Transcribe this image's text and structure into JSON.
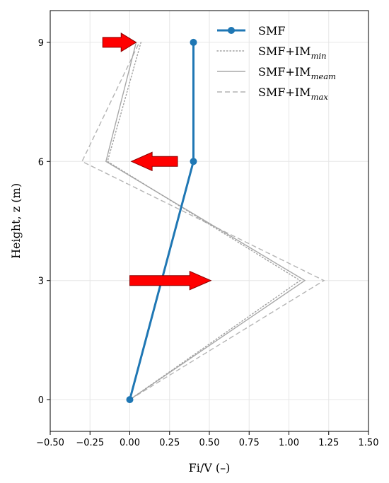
{
  "chart_data": {
    "type": "line",
    "title": "",
    "xlabel": "Fi/V (–)",
    "ylabel": "Height, z (m)",
    "xlim": [
      -0.5,
      1.5
    ],
    "ylim": [
      -0.8,
      9.8
    ],
    "xticks": [
      -0.5,
      -0.25,
      0.0,
      0.25,
      0.5,
      0.75,
      1.0,
      1.25,
      1.5
    ],
    "xtick_labels": [
      "−0.50",
      "−0.25",
      "0.00",
      "0.25",
      "0.50",
      "0.75",
      "1.00",
      "1.25",
      "1.50"
    ],
    "yticks": [
      0,
      3,
      6,
      9
    ],
    "ytick_labels": [
      "0",
      "3",
      "6",
      "9"
    ],
    "grid": true,
    "legend_position": "top-right",
    "series": [
      {
        "name": "SMF",
        "style": "solid-marker",
        "color": "#1f77b4",
        "x": [
          0.0,
          0.4,
          0.4
        ],
        "y": [
          0,
          6,
          9
        ]
      },
      {
        "name": "SMF+IM",
        "subscript": "min",
        "style": "dotted",
        "color": "#a0a0a0",
        "x": [
          0.0,
          1.07,
          -0.14,
          0.07
        ],
        "y": [
          0,
          3,
          6,
          9
        ]
      },
      {
        "name": "SMF+IM",
        "subscript": "meam",
        "style": "solid",
        "color": "#a8a8a8",
        "x": [
          0.0,
          1.1,
          -0.15,
          0.04
        ],
        "y": [
          0,
          3,
          6,
          9
        ]
      },
      {
        "name": "SMF+IM",
        "subscript": "max",
        "style": "dashed",
        "color": "#b4b4b4",
        "x": [
          0.0,
          1.22,
          -0.3,
          0.06
        ],
        "y": [
          0,
          3,
          6,
          9
        ]
      }
    ],
    "annotations": [
      {
        "type": "arrow",
        "direction": "right",
        "color": "#ff0000",
        "x_start": -0.17,
        "x_end": 0.04,
        "y": 9
      },
      {
        "type": "arrow",
        "direction": "left",
        "color": "#ff0000",
        "x_start": 0.3,
        "x_end": 0.01,
        "y": 6
      },
      {
        "type": "arrow",
        "direction": "right",
        "color": "#ff0000",
        "x_start": 0.0,
        "x_end": 0.51,
        "y": 3
      }
    ]
  }
}
